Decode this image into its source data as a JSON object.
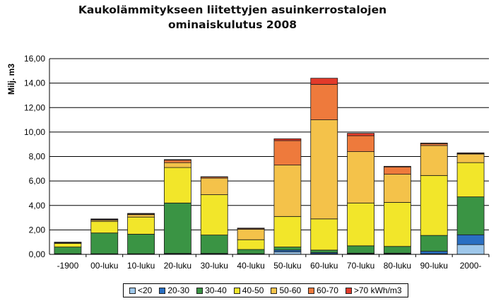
{
  "chart_data": {
    "type": "bar",
    "stacked": true,
    "title": "Kaukolämmitykseen liitettyjen asuinkerrostalojen ominaiskulutus 2008",
    "title_lines": [
      "Kaukolämmitykseen liitettyjen asuinkerrostalojen",
      "ominaiskulutus 2008"
    ],
    "xlabel": "",
    "ylabel": "Milj. m3",
    "ylim": [
      0,
      16
    ],
    "yticks": [
      "0,00",
      "2,00",
      "4,00",
      "6,00",
      "8,00",
      "10,00",
      "12,00",
      "14,00",
      "16,00"
    ],
    "grid": true,
    "legend_position": "bottom",
    "categories": [
      "-1900",
      "00-luku",
      "10-luku",
      "20-luku",
      "30-luku",
      "40-luku",
      "50-luku",
      "60-luku",
      "70-luku",
      "80-luku",
      "90-luku",
      "2000-"
    ],
    "series": [
      {
        "name": "<20",
        "color": "#9ec7ea",
        "values": [
          0.02,
          0.02,
          0.02,
          0.03,
          0.03,
          0.02,
          0.2,
          0.05,
          0.05,
          0.05,
          0.05,
          0.8
        ]
      },
      {
        "name": "20-30",
        "color": "#2a6fc2",
        "values": [
          0.03,
          0.03,
          0.03,
          0.05,
          0.05,
          0.03,
          0.15,
          0.1,
          0.05,
          0.05,
          0.2,
          0.8
        ]
      },
      {
        "name": "30-40",
        "color": "#3a9444",
        "values": [
          0.55,
          1.7,
          1.6,
          4.12,
          1.5,
          0.35,
          0.25,
          0.2,
          0.6,
          0.55,
          1.3,
          3.1
        ]
      },
      {
        "name": "40-50",
        "color": "#f2e62a",
        "values": [
          0.3,
          0.95,
          1.4,
          2.9,
          3.3,
          0.8,
          2.5,
          2.55,
          3.5,
          3.6,
          4.9,
          2.8
        ]
      },
      {
        "name": "50-60",
        "color": "#f4c24a",
        "values": [
          0.05,
          0.1,
          0.2,
          0.4,
          1.35,
          0.85,
          4.2,
          8.1,
          4.2,
          2.3,
          2.45,
          0.7
        ]
      },
      {
        "name": "60-70",
        "color": "#ee7a3c",
        "values": [
          0.03,
          0.05,
          0.05,
          0.2,
          0.1,
          0.07,
          2.0,
          2.9,
          1.3,
          0.6,
          0.15,
          0.05
        ]
      },
      {
        "name": ">70 kWh/m3",
        "color": "#e23a2a",
        "values": [
          0.02,
          0.05,
          0.05,
          0.05,
          0.02,
          0.03,
          0.15,
          0.5,
          0.2,
          0.05,
          0.05,
          0.05
        ]
      }
    ]
  }
}
